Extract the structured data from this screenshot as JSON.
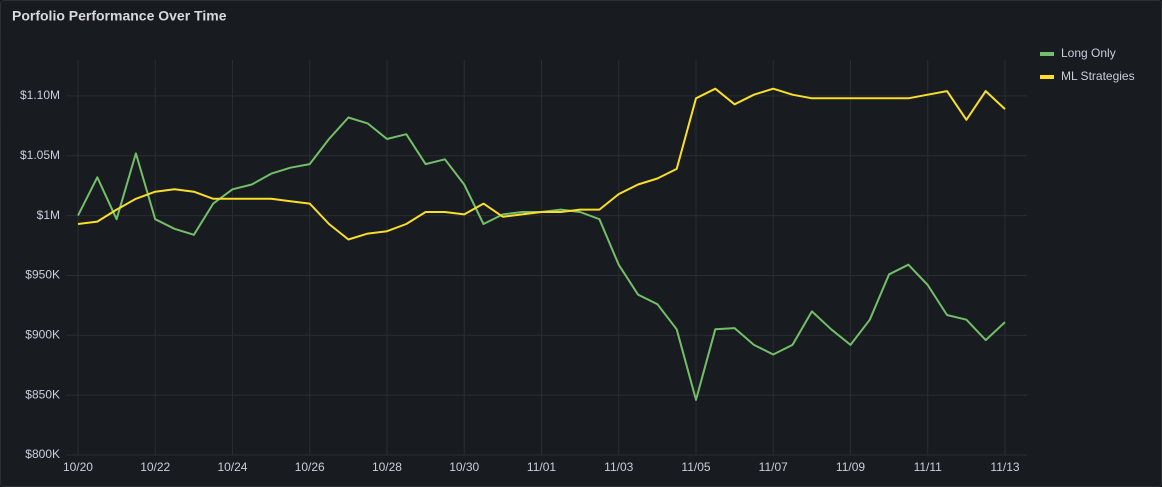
{
  "chart_data": {
    "type": "line",
    "title": "Porfolio Performance Over Time",
    "x": [
      0,
      0.5,
      1,
      1.5,
      2,
      2.5,
      3,
      3.5,
      4,
      4.5,
      5,
      5.5,
      6,
      6.5,
      7,
      7.5,
      8,
      8.5,
      9,
      9.5,
      10,
      10.5,
      11,
      11.5,
      12,
      12.5,
      13,
      13.5,
      14,
      14.5,
      15,
      15.5,
      16,
      16.5,
      17,
      17.5,
      18,
      18.5,
      19,
      19.5,
      20,
      20.5,
      21,
      21.5,
      22,
      22.5,
      23,
      23.5,
      24
    ],
    "series": [
      {
        "name": "Long Only",
        "color": "#73bf69",
        "values": [
          1000000,
          1032000,
          997000,
          1052000,
          997000,
          989000,
          984000,
          1010000,
          1022000,
          1026000,
          1035000,
          1040000,
          1043000,
          1064000,
          1082000,
          1077000,
          1064000,
          1068000,
          1043000,
          1047000,
          1026000,
          993000,
          1001000,
          1003000,
          1003000,
          1005000,
          1003000,
          997000,
          959000,
          934000,
          926000,
          905000,
          846000,
          905000,
          906000,
          892000,
          884000,
          892000,
          920000,
          905000,
          892000,
          913000,
          951000,
          959000,
          942000,
          917000,
          913000,
          896000,
          911000
        ]
      },
      {
        "name": "ML Strategies",
        "color": "#fade2a",
        "values": [
          993000,
          995000,
          1005000,
          1014000,
          1020000,
          1022000,
          1020000,
          1014000,
          1014000,
          1014000,
          1014000,
          1012000,
          1010000,
          993000,
          980000,
          985000,
          987000,
          993000,
          1003000,
          1003000,
          1001000,
          1010000,
          999000,
          1001000,
          1003000,
          1003000,
          1005000,
          1005000,
          1018000,
          1026000,
          1031000,
          1039000,
          1098000,
          1106000,
          1093000,
          1101000,
          1106000,
          1101000,
          1098000,
          1098000,
          1098000,
          1098000,
          1098000,
          1098000,
          1101000,
          1104000,
          1080000,
          1104000,
          1089000
        ]
      }
    ],
    "xlim": [
      -0.31,
      24.57
    ],
    "xticks": [
      {
        "value": 0,
        "label": "10/20"
      },
      {
        "value": 2,
        "label": "10/22"
      },
      {
        "value": 4,
        "label": "10/24"
      },
      {
        "value": 6,
        "label": "10/26"
      },
      {
        "value": 8,
        "label": "10/28"
      },
      {
        "value": 10,
        "label": "10/30"
      },
      {
        "value": 12,
        "label": "11/01"
      },
      {
        "value": 14,
        "label": "11/03"
      },
      {
        "value": 16,
        "label": "11/05"
      },
      {
        "value": 18,
        "label": "11/07"
      },
      {
        "value": 20,
        "label": "11/09"
      },
      {
        "value": 22,
        "label": "11/11"
      },
      {
        "value": 24,
        "label": "11/13"
      }
    ],
    "ylim": [
      800000,
      1130000
    ],
    "yticks": [
      {
        "value": 800000,
        "label": "$800K"
      },
      {
        "value": 850000,
        "label": "$850K"
      },
      {
        "value": 900000,
        "label": "$900K"
      },
      {
        "value": 950000,
        "label": "$950K"
      },
      {
        "value": 1000000,
        "label": "$1M"
      },
      {
        "value": 1050000,
        "label": "$1.05M"
      },
      {
        "value": 1100000,
        "label": "$1.10M"
      }
    ],
    "grid": true,
    "legend": "right"
  }
}
